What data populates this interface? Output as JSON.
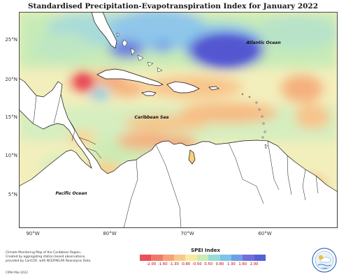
{
  "title": "Standardised Precipitation-Evapotranspiration Index for January 2022",
  "map": {
    "latitude_labels": [
      "25°N",
      "20°N",
      "15°N",
      "10°N",
      "5°N"
    ],
    "longitude_labels": [
      "90°W",
      "80°W",
      "70°W",
      "60°W"
    ],
    "place_labels": {
      "atlantic": "Atlantic Ocean",
      "caribbean": "Caribbean Sea",
      "pacific": "Pacific Ocean"
    },
    "lat_range": [
      1,
      28
    ],
    "lon_range": [
      -93,
      -52
    ]
  },
  "legend": {
    "title": "SPEI Index",
    "ticks": [
      "-2.00",
      "-1.60",
      "-1.30",
      "-0.80",
      "-0.50",
      "0.50",
      "0.80",
      "1.30",
      "1.60",
      "2.00"
    ],
    "colors": [
      "#e8505a",
      "#f07a6a",
      "#f5a377",
      "#f8c98a",
      "#faeaa0",
      "#c9ecb4",
      "#98dcd6",
      "#7cc4ea",
      "#6f9fe6",
      "#6f70dc",
      "#5560d2"
    ]
  },
  "footnote": {
    "lines": [
      "Climate Monitoring Map of the Caribbean Region.",
      "Created by aggregating station based observations,",
      "provided by CariCOF, with NCEP/NCAR Reanalysis Data."
    ],
    "credit": "CIMH Mar-2022"
  },
  "logo": {
    "text": "CIMH",
    "icon": "cimh-logo-icon"
  }
}
